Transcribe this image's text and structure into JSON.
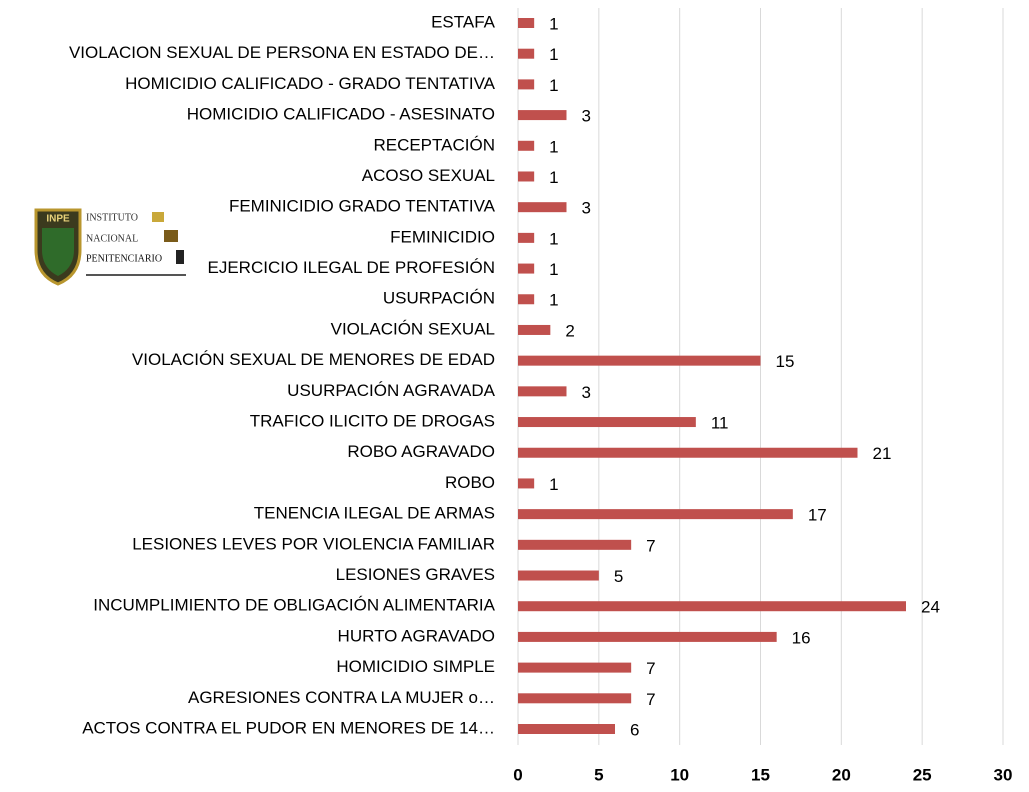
{
  "chart_data": {
    "type": "bar",
    "orientation": "horizontal",
    "categories": [
      "ESTAFA",
      "VIOLACION SEXUAL DE PERSONA EN ESTADO DE…",
      "HOMICIDIO CALIFICADO - GRADO TENTATIVA",
      "HOMICIDIO CALIFICADO - ASESINATO",
      "RECEPTACIÓN",
      "ACOSO SEXUAL",
      "FEMINICIDIO GRADO TENTATIVA",
      "FEMINICIDIO",
      "EJERCICIO ILEGAL DE PROFESIÓN",
      "USURPACIÓN",
      "VIOLACIÓN SEXUAL",
      "VIOLACIÓN SEXUAL DE MENORES DE EDAD",
      "USURPACIÓN AGRAVADA",
      "TRAFICO ILICITO DE DROGAS",
      "ROBO AGRAVADO",
      "ROBO",
      "TENENCIA ILEGAL DE ARMAS",
      "LESIONES LEVES POR VIOLENCIA FAMILIAR",
      "LESIONES GRAVES",
      "INCUMPLIMIENTO DE OBLIGACIÓN ALIMENTARIA",
      "HURTO AGRAVADO",
      "HOMICIDIO SIMPLE",
      "AGRESIONES CONTRA LA MUJER o…",
      "ACTOS CONTRA EL PUDOR EN MENORES DE 14…"
    ],
    "values": [
      1,
      1,
      1,
      3,
      1,
      1,
      3,
      1,
      1,
      1,
      2,
      15,
      3,
      11,
      21,
      1,
      17,
      7,
      5,
      24,
      16,
      7,
      7,
      6
    ],
    "color": "#c0504d",
    "xlim": [
      0,
      30
    ],
    "xticks": [
      0,
      5,
      10,
      15,
      20,
      25,
      30
    ],
    "grid": true,
    "logo": {
      "lines": [
        "INSTITUTO",
        "NACIONAL",
        "PENITENCIARIO"
      ],
      "badge": "INPE"
    }
  }
}
